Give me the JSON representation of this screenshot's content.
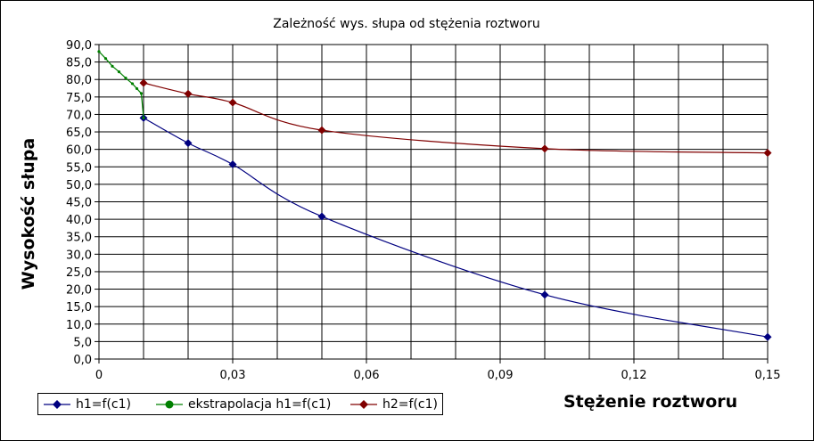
{
  "chart_data": {
    "type": "line",
    "title": "Zależność wys. słupa od stężenia roztworu",
    "xlabel": "Stężenie roztworu",
    "ylabel": "Wysokość słupa",
    "xlim": [
      0,
      0.15
    ],
    "ylim": [
      0,
      90
    ],
    "grid": true,
    "legend_position": "bottom-left",
    "x_ticks": [
      {
        "value": 0,
        "label": "0"
      },
      {
        "value": 0.03,
        "label": "0,03"
      },
      {
        "value": 0.06,
        "label": "0,06"
      },
      {
        "value": 0.09,
        "label": "0,09"
      },
      {
        "value": 0.12,
        "label": "0,12"
      },
      {
        "value": 0.15,
        "label": "0,15"
      }
    ],
    "y_ticks": [
      "0,0",
      "5,0",
      "10,0",
      "15,0",
      "20,0",
      "25,0",
      "30,0",
      "35,0",
      "40,0",
      "45,0",
      "50,0",
      "55,0",
      "60,0",
      "65,0",
      "70,0",
      "75,0",
      "80,0",
      "85,0",
      "90,0"
    ],
    "series": [
      {
        "name": "h1=f(c1)",
        "color": "#000080",
        "marker": "diamond",
        "points": [
          [
            0.01,
            69.0
          ],
          [
            0.02,
            61.8
          ],
          [
            0.03,
            55.7
          ],
          [
            0.05,
            40.8
          ],
          [
            0.1,
            18.4
          ],
          [
            0.15,
            6.3
          ]
        ]
      },
      {
        "name": "ekstrapolacja h1=f(c1)",
        "color": "#008000",
        "marker": "circle",
        "points": [
          [
            0.0,
            88.0
          ],
          [
            0.0015,
            86.0
          ],
          [
            0.003,
            83.8
          ],
          [
            0.0045,
            82.2
          ],
          [
            0.006,
            80.4
          ],
          [
            0.0075,
            78.8
          ],
          [
            0.0085,
            77.4
          ],
          [
            0.0095,
            76.0
          ],
          [
            0.01,
            69.0
          ]
        ]
      },
      {
        "name": "h2=f(c1)",
        "color": "#800000",
        "marker": "diamond",
        "points": [
          [
            0.01,
            79.0
          ],
          [
            0.02,
            75.9
          ],
          [
            0.03,
            73.4
          ],
          [
            0.05,
            65.5
          ],
          [
            0.1,
            60.2
          ],
          [
            0.15,
            59.0
          ]
        ]
      }
    ]
  }
}
